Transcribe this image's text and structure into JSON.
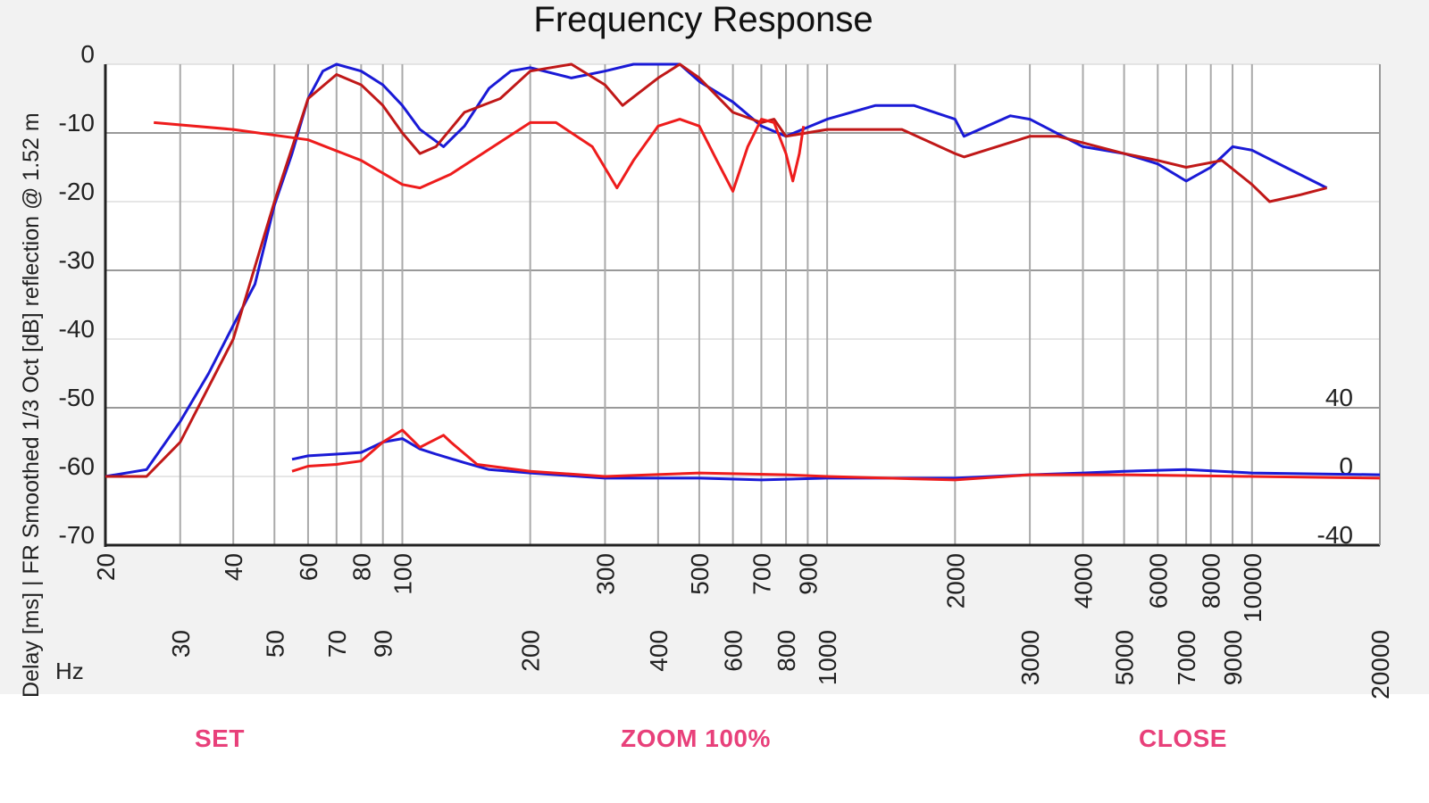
{
  "buttons": {
    "set": "SET",
    "zoom": "ZOOM 100%",
    "close": "CLOSE"
  },
  "colors": {
    "blue": "#1a1ad6",
    "dark_red": "#c01818",
    "red": "#ee1c1c",
    "accent": "#e8407a"
  },
  "chart_data": {
    "type": "line",
    "title": "Frequency Response",
    "ylabel": "Delay [ms] | FR Smoothed 1/3 Oct [dB]  reflection @ 1.52 m",
    "xlabel": "Hz",
    "x_scale": "log",
    "xlim": [
      20,
      20000
    ],
    "ylim": [
      -70,
      0
    ],
    "y2lim": [
      -40,
      40
    ],
    "y2_ticks": [
      "40",
      "0",
      "-40"
    ],
    "y2_tick_values": [
      40,
      0,
      -40
    ],
    "grid": true,
    "x_ticks": [
      "20",
      "30",
      "40",
      "50",
      "60",
      "70",
      "80",
      "90",
      "100",
      "200",
      "300",
      "400",
      "500",
      "600",
      "700",
      "800",
      "900",
      "1000",
      "2000",
      "3000",
      "4000",
      "5000",
      "6000",
      "7000",
      "8000",
      "9000",
      "10000",
      "20000"
    ],
    "x_tick_values": [
      20,
      30,
      40,
      50,
      60,
      70,
      80,
      90,
      100,
      200,
      300,
      400,
      500,
      600,
      700,
      800,
      900,
      1000,
      2000,
      3000,
      4000,
      5000,
      6000,
      7000,
      8000,
      9000,
      10000,
      20000
    ],
    "y_ticks": [
      "0",
      "-10",
      "-20",
      "-30",
      "-40",
      "-50",
      "-60",
      "-70"
    ],
    "y_tick_values": [
      0,
      -10,
      -20,
      -30,
      -40,
      -50,
      -60,
      -70
    ],
    "series": [
      {
        "axis": "left",
        "color": "#1a1ad6",
        "x": [
          20,
          25,
          30,
          35,
          40,
          45,
          50,
          55,
          60,
          65,
          70,
          80,
          90,
          100,
          110,
          125,
          140,
          160,
          180,
          200,
          250,
          300,
          350,
          450,
          500,
          600,
          700,
          800,
          1000,
          1300,
          1600,
          2000,
          2100,
          2700,
          3000,
          4000,
          5000,
          6000,
          7000,
          8000,
          9000,
          10000,
          12000,
          15000
        ],
        "y": [
          -60,
          -59,
          -52,
          -45,
          -38,
          -32,
          -20.5,
          -13,
          -5,
          -1,
          0,
          -1,
          -3,
          -6,
          -9.5,
          -12,
          -9,
          -3.5,
          -1,
          -0.5,
          -2,
          -1,
          0,
          0,
          -2.5,
          -5.5,
          -9,
          -10.5,
          -8,
          -6,
          -6,
          -8,
          -10.5,
          -7.5,
          -8,
          -12,
          -13,
          -14.5,
          -17,
          -15,
          -12,
          -12.5,
          -15,
          -18
        ]
      },
      {
        "axis": "left",
        "color": "#c01818",
        "x": [
          20,
          25,
          30,
          40,
          50,
          60,
          70,
          80,
          90,
          100,
          110,
          120,
          140,
          170,
          200,
          250,
          300,
          330,
          400,
          450,
          500,
          600,
          700,
          750,
          800,
          1000,
          1500,
          2000,
          2100,
          3000,
          3500,
          5000,
          6000,
          7000,
          8500,
          10000,
          11000,
          13000,
          15000
        ],
        "y": [
          -60,
          -60,
          -55,
          -40,
          -20,
          -5,
          -1.5,
          -3,
          -6,
          -10,
          -13,
          -12,
          -7,
          -5,
          -1,
          0,
          -3,
          -6,
          -2,
          0,
          -2,
          -7,
          -8.5,
          -8,
          -10.5,
          -9.5,
          -9.5,
          -13,
          -13.5,
          -10.5,
          -10.5,
          -13,
          -14,
          -15,
          -14,
          -17.5,
          -20,
          -19,
          -18
        ]
      },
      {
        "axis": "left",
        "color": "#ee1c1c",
        "x": [
          26,
          40,
          60,
          80,
          100,
          110,
          130,
          200,
          230,
          280,
          320,
          350,
          400,
          450,
          500,
          550,
          600,
          650,
          700,
          750,
          800,
          830,
          860,
          880
        ],
        "y": [
          -8.5,
          -9.5,
          -11,
          -14,
          -17.5,
          -18,
          -16,
          -8.5,
          -8.5,
          -12,
          -18,
          -14,
          -9,
          -8,
          -9,
          -14,
          -18.5,
          -12,
          -8,
          -8.5,
          -13,
          -17,
          -13,
          -9
        ]
      },
      {
        "axis": "right",
        "color": "#1a1ad6",
        "x": [
          55,
          60,
          70,
          80,
          90,
          100,
          110,
          120,
          140,
          160,
          200,
          300,
          500,
          700,
          1000,
          2000,
          3000,
          4000,
          5000,
          7000,
          10000,
          20000
        ],
        "y": [
          10,
          12,
          13,
          14,
          20,
          22,
          16,
          13,
          8,
          4,
          2,
          -1,
          -1,
          -2,
          -1,
          -1,
          1,
          2,
          3,
          4,
          2,
          1
        ]
      },
      {
        "axis": "right",
        "color": "#ee1c1c",
        "x": [
          55,
          60,
          70,
          80,
          90,
          100,
          110,
          125,
          130,
          150,
          200,
          300,
          500,
          800,
          1000,
          2000,
          3000,
          5000,
          10000,
          20000
        ],
        "y": [
          3,
          6,
          7,
          9,
          20,
          27,
          17,
          24,
          20,
          7,
          3,
          0,
          2,
          1,
          0,
          -2,
          1,
          1,
          0,
          -1
        ]
      }
    ]
  }
}
